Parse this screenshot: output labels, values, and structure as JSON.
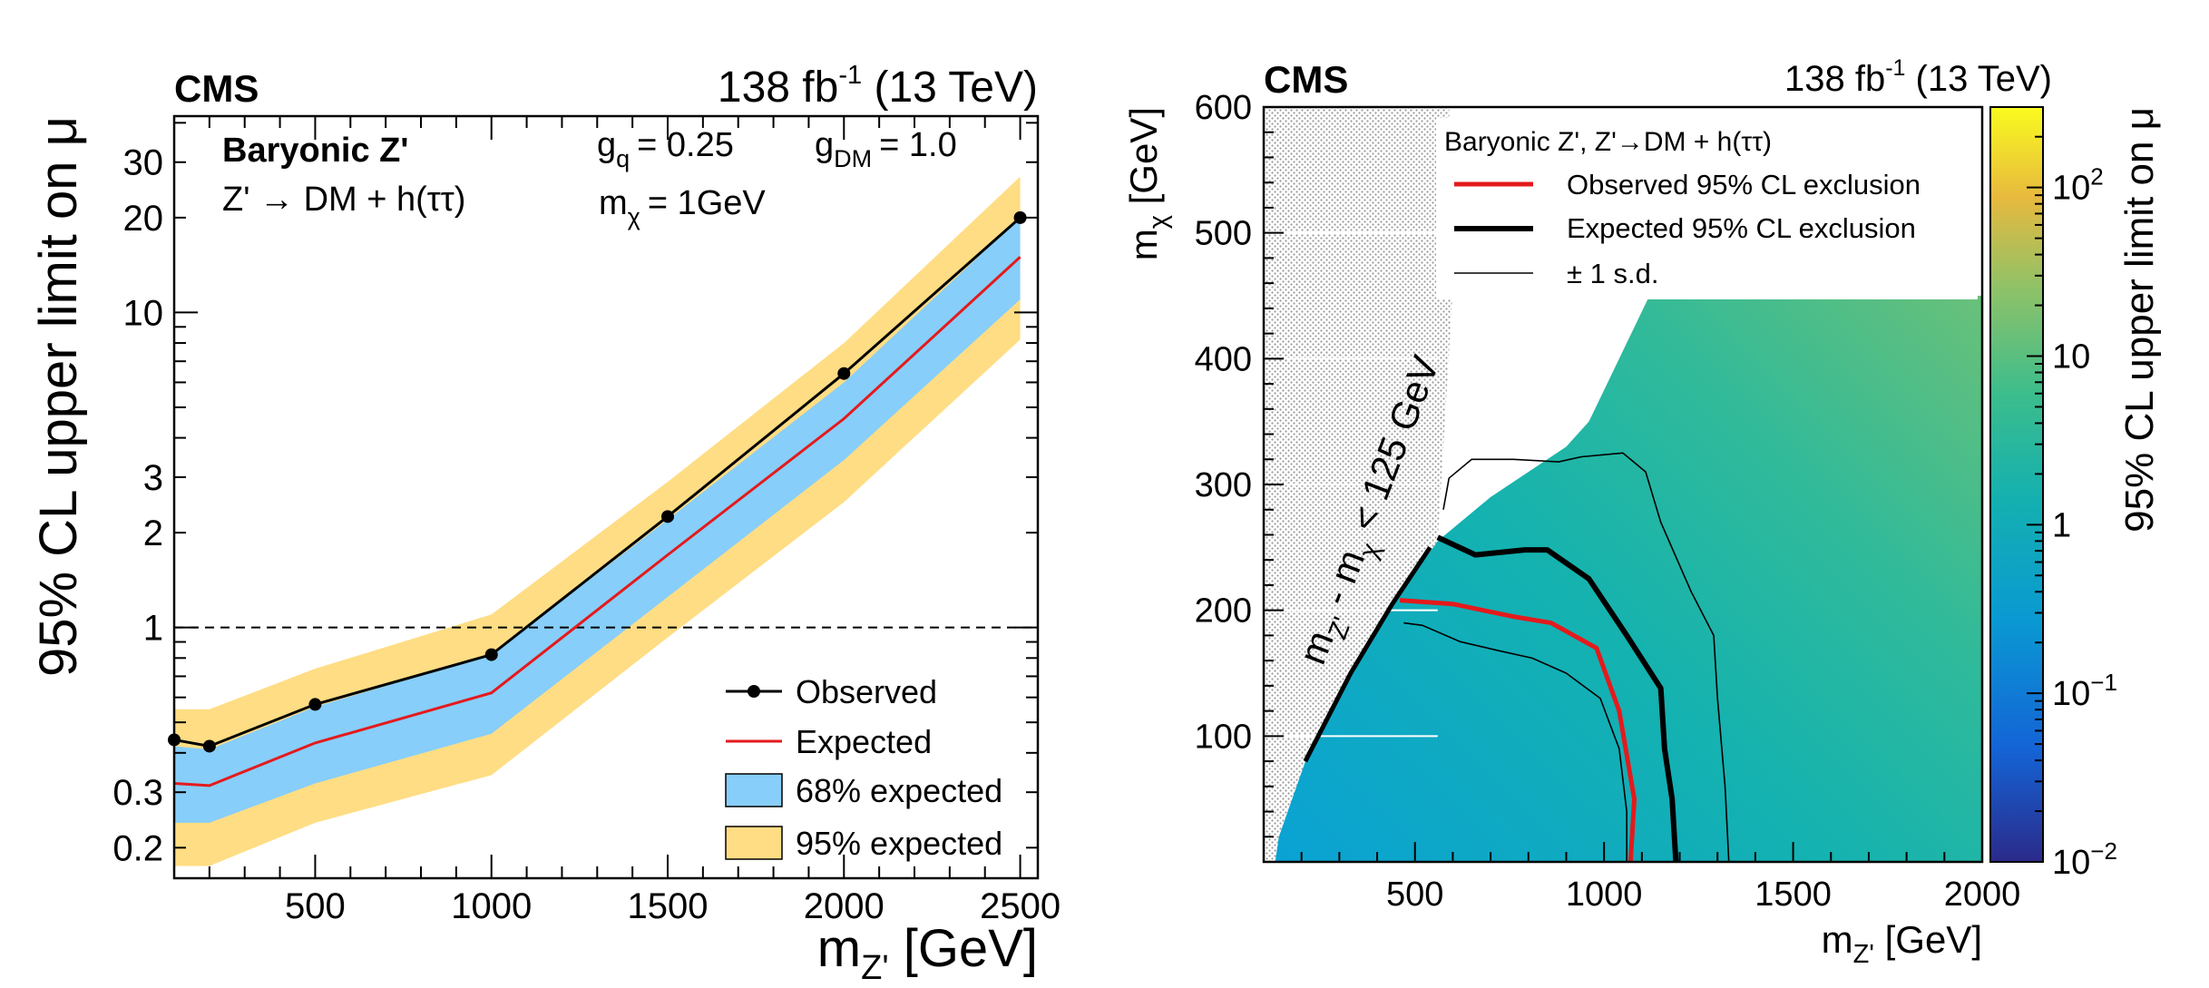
{
  "chart_data": [
    {
      "type": "line",
      "experiment": "CMS",
      "lumi": {
        "base": "138 fb",
        "sup": "-1",
        "energy": " (13 TeV)"
      },
      "model": {
        "title": "Baryonic Z'",
        "process": "Z' → DM + h(ττ)"
      },
      "couplings": {
        "gq": "= 0.25",
        "gdm": "= 1.0",
        "mchi": "= 1GeV"
      },
      "xlabel": "m",
      "xlabel_sub": "Z'",
      "xlabel_unit": " [GeV]",
      "ylabel": "95% CL upper limit on μ",
      "xlim": [
        100,
        2550
      ],
      "ylim": [
        0.16,
        42
      ],
      "yscale": "log",
      "x_ticks": [
        500,
        1000,
        1500,
        2000,
        2500
      ],
      "y_ticks": [
        0.2,
        0.3,
        1,
        2,
        3,
        10,
        20,
        30
      ],
      "y_tick_labels": [
        "0.2",
        "0.3",
        "1",
        "2",
        "3",
        "10",
        "20",
        "30"
      ],
      "reference_line": 1,
      "x": [
        100,
        200,
        500,
        1000,
        1500,
        2000,
        2500
      ],
      "series": [
        {
          "name": "Observed",
          "color": "#000000",
          "values": [
            0.44,
            0.42,
            0.57,
            0.82,
            2.25,
            6.4,
            20
          ]
        },
        {
          "name": "Expected",
          "color": "#e41a1c",
          "values": [
            0.32,
            0.315,
            0.43,
            0.62,
            1.7,
            4.6,
            15
          ]
        }
      ],
      "bands": [
        {
          "name": "68% expected",
          "color": "#87cefa",
          "lower": [
            0.24,
            0.24,
            0.32,
            0.46,
            1.25,
            3.4,
            11
          ],
          "upper": [
            0.42,
            0.41,
            0.56,
            0.82,
            2.2,
            6.0,
            20
          ]
        },
        {
          "name": "95% expected",
          "color": "#ffdd84",
          "lower": [
            0.175,
            0.175,
            0.24,
            0.34,
            0.93,
            2.5,
            8.2
          ],
          "upper": [
            0.55,
            0.55,
            0.74,
            1.1,
            2.9,
            8.0,
            27
          ]
        }
      ],
      "legend": [
        "Observed",
        "Expected",
        "68% expected",
        "95% expected"
      ],
      "legend_position": "bottom-right"
    },
    {
      "type": "heatmap",
      "experiment": "CMS",
      "lumi": {
        "base": "138 fb",
        "sup": "-1",
        "energy": " (13 TeV)"
      },
      "legend_title": "Baryonic Z', Z'→DM + h(ττ)",
      "legend": [
        "Observed 95% CL exclusion",
        "Expected 95% CL exclusion",
        "± 1 s.d."
      ],
      "xlabel": "m",
      "xlabel_sub": "Z'",
      "xlabel_unit": " [GeV]",
      "ylabel": "m",
      "ylabel_sub": "χ",
      "ylabel_unit": " [GeV]",
      "xlim": [
        100,
        2000
      ],
      "ylim": [
        0,
        600
      ],
      "x_ticks": [
        500,
        1000,
        1500,
        2000
      ],
      "y_ticks": [
        100,
        200,
        300,
        400,
        500,
        600
      ],
      "z_label": "95% CL upper limit on μ",
      "z_scale": "log",
      "z_range": [
        0.01,
        300
      ],
      "z_ticks": [
        {
          "value": 0.01,
          "base": "10",
          "exp": "−2"
        },
        {
          "value": 0.1,
          "base": "10",
          "exp": "−1"
        },
        {
          "value": 1,
          "base": "1",
          "exp": ""
        },
        {
          "value": 10,
          "base": "10",
          "exp": ""
        },
        {
          "value": 100,
          "base": "10",
          "exp": "2"
        }
      ],
      "forbidden_region_label": "m",
      "forbidden_region_label_sub1": "Z'",
      "forbidden_region_label_mid": " - m",
      "forbidden_region_label_sub2": "χ",
      "forbidden_region_label_end": " < 125 GeV",
      "observed_contour": [
        [
          1070,
          0
        ],
        [
          1080,
          50
        ],
        [
          1040,
          120
        ],
        [
          980,
          170
        ],
        [
          920,
          180
        ],
        [
          860,
          190
        ],
        [
          760,
          195
        ],
        [
          680,
          200
        ],
        [
          600,
          205
        ],
        [
          460,
          208
        ]
      ],
      "expected_contour": [
        [
          1190,
          0
        ],
        [
          1180,
          50
        ],
        [
          1160,
          90
        ],
        [
          1150,
          138
        ],
        [
          1060,
          180
        ],
        [
          960,
          225
        ],
        [
          850,
          248
        ],
        [
          790,
          248
        ],
        [
          660,
          244
        ],
        [
          560,
          258
        ]
      ],
      "minus1sd_contour": [
        [
          1060,
          0
        ],
        [
          1060,
          40
        ],
        [
          1040,
          90
        ],
        [
          990,
          130
        ],
        [
          900,
          150
        ],
        [
          810,
          162
        ],
        [
          720,
          168
        ],
        [
          620,
          175
        ],
        [
          520,
          188
        ],
        [
          470,
          190
        ]
      ],
      "plus1sd_contour": [
        [
          1330,
          0
        ],
        [
          1320,
          60
        ],
        [
          1300,
          130
        ],
        [
          1290,
          180
        ],
        [
          1230,
          215
        ],
        [
          1150,
          270
        ],
        [
          1110,
          310
        ],
        [
          1050,
          325
        ],
        [
          940,
          322
        ],
        [
          880,
          318
        ],
        [
          760,
          320
        ],
        [
          650,
          320
        ],
        [
          590,
          305
        ],
        [
          575,
          280
        ]
      ],
      "colors": {
        "observed": "#e41a1c",
        "expected": "#000000",
        "sd": "#000000"
      }
    }
  ]
}
